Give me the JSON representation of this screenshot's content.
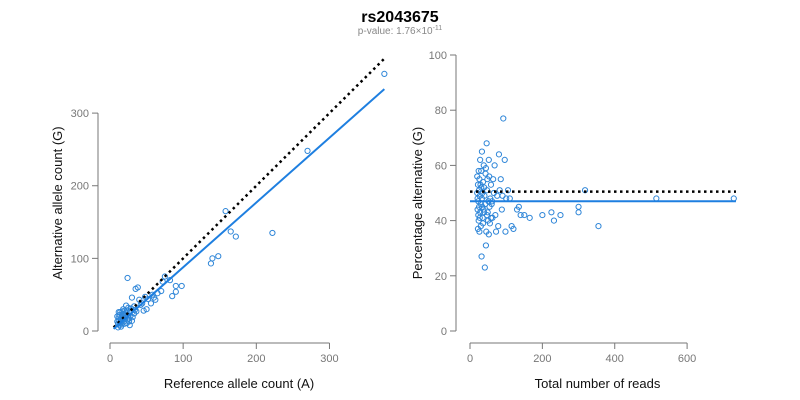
{
  "title": "rs2043675",
  "subtitle": {
    "prefix": "p-value: 1.76×10",
    "exponent": "-11"
  },
  "colors": {
    "points": "#2f86d8",
    "fit_line": "#1e7fe0",
    "reference_line": "#000000",
    "axis": "#777777"
  },
  "chart_data": [
    {
      "type": "scatter",
      "xlabel": "Reference allele count (A)",
      "ylabel": "Alternative allele count (G)",
      "xlim": [
        0,
        380
      ],
      "ylim": [
        0,
        380
      ],
      "xticks": [
        0,
        100,
        200,
        300
      ],
      "yticks": [
        0,
        100,
        200,
        300
      ],
      "grid": false,
      "fit_line": {
        "x": [
          5,
          375
        ],
        "y": [
          3,
          333
        ]
      },
      "reference_line": {
        "x": [
          5,
          375
        ],
        "y": [
          5,
          375
        ]
      },
      "points": [
        [
          375,
          354
        ],
        [
          270,
          248
        ],
        [
          222,
          135
        ],
        [
          165,
          137
        ],
        [
          172,
          130
        ],
        [
          158,
          165
        ],
        [
          148,
          103
        ],
        [
          140,
          100
        ],
        [
          138,
          93
        ],
        [
          98,
          62
        ],
        [
          90,
          62
        ],
        [
          85,
          48
        ],
        [
          90,
          54
        ],
        [
          82,
          70
        ],
        [
          75,
          75
        ],
        [
          70,
          55
        ],
        [
          72,
          68
        ],
        [
          65,
          52
        ],
        [
          62,
          43
        ],
        [
          58,
          50
        ],
        [
          56,
          38
        ],
        [
          50,
          30
        ],
        [
          48,
          47
        ],
        [
          44,
          38
        ],
        [
          40,
          43
        ],
        [
          38,
          60
        ],
        [
          35,
          58
        ],
        [
          33,
          34
        ],
        [
          30,
          46
        ],
        [
          28,
          28
        ],
        [
          25,
          32
        ],
        [
          24,
          73
        ],
        [
          22,
          35
        ],
        [
          20,
          28
        ],
        [
          18,
          18
        ],
        [
          16,
          22
        ],
        [
          15,
          12
        ],
        [
          14,
          17
        ],
        [
          13,
          8
        ],
        [
          12,
          14
        ],
        [
          12,
          19
        ],
        [
          11,
          10
        ],
        [
          10,
          13
        ],
        [
          10,
          20
        ],
        [
          14,
          26
        ],
        [
          17,
          15
        ],
        [
          19,
          24
        ],
        [
          21,
          19
        ],
        [
          23,
          11
        ],
        [
          26,
          17
        ],
        [
          28,
          21
        ],
        [
          30,
          14
        ],
        [
          33,
          24
        ],
        [
          36,
          27
        ],
        [
          18,
          30
        ],
        [
          15,
          6
        ],
        [
          13,
          22
        ],
        [
          20,
          10
        ],
        [
          22,
          25
        ],
        [
          25,
          20
        ],
        [
          27,
          8
        ],
        [
          12,
          26
        ],
        [
          24,
          16
        ],
        [
          29,
          31
        ],
        [
          16,
          9
        ],
        [
          19,
          13
        ],
        [
          21,
          21
        ],
        [
          31,
          19
        ],
        [
          34,
          29
        ],
        [
          42,
          36
        ],
        [
          46,
          28
        ],
        [
          52,
          44
        ],
        [
          60,
          46
        ],
        [
          11,
          5
        ],
        [
          17,
          27
        ],
        [
          26,
          13
        ],
        [
          23,
          28
        ],
        [
          14,
          11
        ],
        [
          20,
          16
        ],
        [
          18,
          23
        ]
      ]
    },
    {
      "type": "scatter",
      "xlabel": "Total number of reads",
      "ylabel": "Percentage alternative (G)",
      "xlim": [
        0,
        760
      ],
      "ylim": [
        0,
        100
      ],
      "xticks": [
        0,
        200,
        400,
        600
      ],
      "yticks": [
        0,
        20,
        40,
        60,
        80,
        100
      ],
      "grid": false,
      "fit_line": {
        "x": [
          0,
          735
        ],
        "y": [
          47,
          47
        ]
      },
      "reference_line": {
        "x": [
          0,
          735
        ],
        "y": [
          50.5,
          50.5
        ]
      },
      "points": [
        [
          729,
          48
        ],
        [
          515,
          48
        ],
        [
          355,
          38
        ],
        [
          318,
          51
        ],
        [
          300,
          45
        ],
        [
          300,
          43
        ],
        [
          250,
          42
        ],
        [
          232,
          40
        ],
        [
          225,
          43
        ],
        [
          200,
          42
        ],
        [
          165,
          41
        ],
        [
          150,
          42
        ],
        [
          140,
          42
        ],
        [
          135,
          45
        ],
        [
          130,
          44
        ],
        [
          120,
          37
        ],
        [
          115,
          38
        ],
        [
          110,
          48
        ],
        [
          105,
          51
        ],
        [
          100,
          48
        ],
        [
          98,
          36
        ],
        [
          96,
          62
        ],
        [
          92,
          77
        ],
        [
          90,
          49
        ],
        [
          88,
          44
        ],
        [
          85,
          55
        ],
        [
          82,
          51
        ],
        [
          80,
          64
        ],
        [
          78,
          38
        ],
        [
          75,
          49
        ],
        [
          72,
          36
        ],
        [
          70,
          42
        ],
        [
          68,
          60
        ],
        [
          66,
          50
        ],
        [
          64,
          55
        ],
        [
          62,
          41
        ],
        [
          60,
          46
        ],
        [
          58,
          53
        ],
        [
          56,
          48
        ],
        [
          55,
          39
        ],
        [
          54,
          45
        ],
        [
          53,
          56
        ],
        [
          52,
          62
        ],
        [
          51,
          47
        ],
        [
          50,
          40
        ],
        [
          49,
          43
        ],
        [
          48,
          55
        ],
        [
          47,
          51
        ],
        [
          46,
          68
        ],
        [
          45,
          36
        ],
        [
          44,
          31
        ],
        [
          43,
          57
        ],
        [
          42,
          46
        ],
        [
          41,
          23
        ],
        [
          40,
          49
        ],
        [
          39,
          52
        ],
        [
          38,
          60
        ],
        [
          37,
          44
        ],
        [
          36,
          54
        ],
        [
          35,
          41
        ],
        [
          34,
          50
        ],
        [
          33,
          48
        ],
        [
          32,
          27
        ],
        [
          31,
          58
        ],
        [
          30,
          46
        ],
        [
          30,
          38
        ],
        [
          29,
          53
        ],
        [
          28,
          43
        ],
        [
          28,
          62
        ],
        [
          27,
          49
        ],
        [
          26,
          36
        ],
        [
          26,
          55
        ],
        [
          25,
          45
        ],
        [
          25,
          51
        ],
        [
          24,
          40
        ],
        [
          24,
          58
        ],
        [
          23,
          47
        ],
        [
          23,
          42
        ],
        [
          22,
          53
        ],
        [
          22,
          37
        ],
        [
          21,
          48
        ],
        [
          21,
          44
        ],
        [
          20,
          50
        ],
        [
          20,
          56
        ],
        [
          33,
          65
        ],
        [
          36,
          39
        ],
        [
          47,
          42
        ],
        [
          52,
          35
        ],
        [
          58,
          41
        ],
        [
          61,
          47
        ],
        [
          44,
          59
        ],
        [
          39,
          43
        ],
        [
          27,
          41
        ],
        [
          31,
          52
        ],
        [
          34,
          45
        ]
      ]
    }
  ]
}
